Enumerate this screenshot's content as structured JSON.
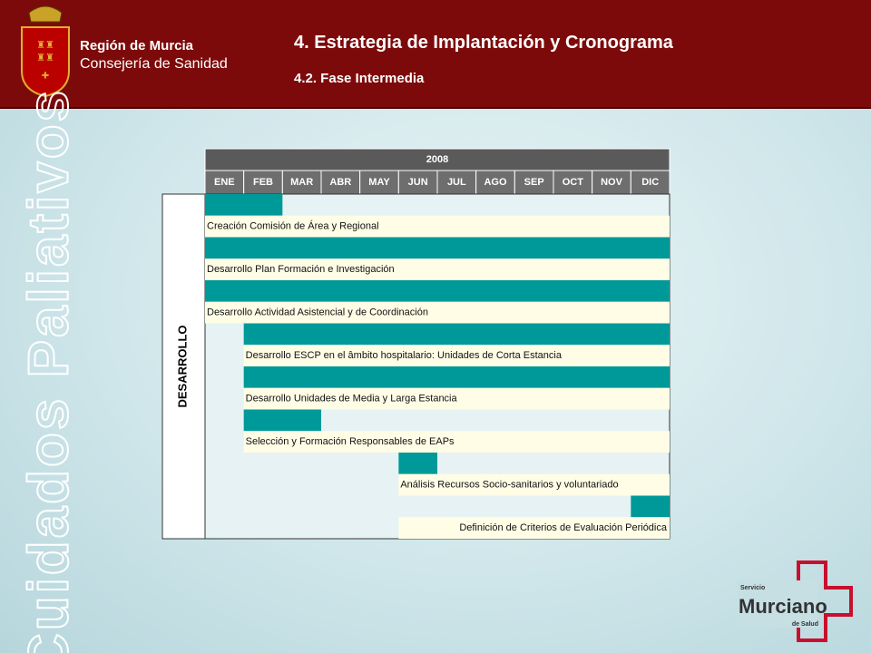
{
  "header": {
    "region": "Región de Murcia",
    "department": "Consejería de Sanidad",
    "title": "4. Estrategia de Implantación y Cronograma",
    "subtitle": "4.2. Fase Intermedia"
  },
  "side_title": "Cuidados Paliativos",
  "schedule": {
    "year": "2008",
    "months": [
      "ENE",
      "FEB",
      "MAR",
      "ABR",
      "MAY",
      "JUN",
      "JUL",
      "AGO",
      "SEP",
      "OCT",
      "NOV",
      "DIC"
    ],
    "phase": "DESARROLLO",
    "tasks": [
      {
        "label": "Creación Comisión de Área y Regional",
        "start": 0,
        "end": 1
      },
      {
        "label": "Desarrollo Plan Formación e Investigación",
        "start": 0,
        "end": 11
      },
      {
        "label": "Desarrollo Actividad Asistencial y de Coordinación",
        "start": 0,
        "end": 11
      },
      {
        "label": "Desarrollo ESCP en el âmbito hospitalario: Unidades de Corta Estancia",
        "start": 1,
        "end": 11
      },
      {
        "label": "Desarrollo Unidades de Media y Larga Estancia",
        "start": 1,
        "end": 11
      },
      {
        "label": "Selección y Formación Responsables de EAPs",
        "start": 1,
        "end": 2
      },
      {
        "label": "Análisis Recursos Socio-sanitarios y voluntariado",
        "start": 5,
        "end": 5
      },
      {
        "label": "Definición de Criterios de Evaluación Periódica",
        "start": 11,
        "end": 11
      }
    ]
  },
  "logo": {
    "top": "Servicio",
    "main": "Murciano",
    "bottom": "de Salud"
  }
}
